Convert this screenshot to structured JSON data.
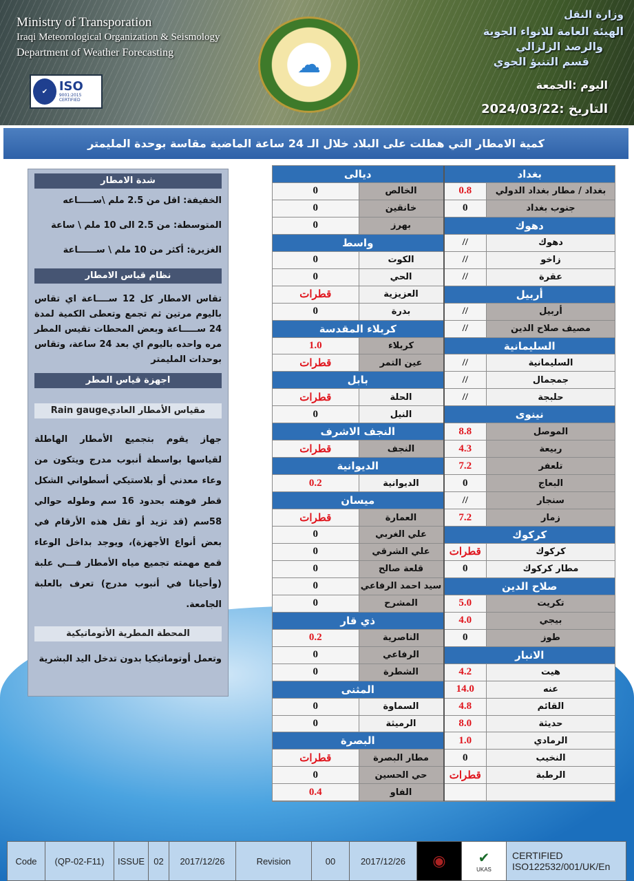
{
  "header": {
    "en": [
      "Ministry of Transporation",
      "Iraqi Meteorological Organization & Seismology",
      "Department of Weather Forecasting"
    ],
    "iso": {
      "label": "ISO",
      "sub": "9001:2015 CERTIFIED"
    },
    "ar": [
      "وزارة النقل",
      "الهيئة العامة للانواء الجوية",
      "والرصد الزلزالي",
      "قسم التنبؤ الجوي"
    ],
    "day": "اليوم :الجمعة",
    "date": "التاريخ :2024/03/22"
  },
  "title": "كمية الامطار التي هطلت على البلاد خلال الـ 24 ساعة الماضية مقاسة بوحدة المليمتر",
  "left_panel": {
    "intensity_title": "شدة الامطار",
    "intensity": [
      "الخفيفة: اقل من  2.5  ملم \\ســـــاعه",
      "المتوسطة: من 2.5 الى 10 ملم \\ ساعة",
      "الغزيرة: أكثر من 10 ملم \\ ســــــاعة"
    ],
    "system_title": "نظام قياس الامطار",
    "system_text": "تقاس الامطار كل 12 ســــاعة اي تقاس باليوم مرتين ثم تجمع وتعطى الكمية لمدة 24 ســـــاعة وبعض المحطات تقيس المطر مره واحده باليوم اي بعد 24 ساعة، وتقاس بوحدات المليمتر",
    "devices_title": "اجهزة قياس المطر",
    "gauge_title": "مقياس الأمطار العاديRain gauge",
    "gauge_text": "جهاز يقوم بتجميع الأمطار الهاطلة لقياسها بواسطة أنبوب مدرج ويتكون من وعاء معدني أو بلاستيكي أسطواني الشكل قطر فوهته بحدود 16 سم وطوله حوالي 58سم (قد تزيد أو تقل هذه الأرقام في بعض أنواع الأجهزة)، ويوجد بداخل الوعاء قمع مهمته تجميع مياه الأمطار فـــي علبة (وأحيانا في أنبوب مدرج) تعرف بالعلبة الجامعة.",
    "auto_title": "المحطة المطرية الأتوماتيكية",
    "auto_text": "وتعمل أوتوماتيكيا بدون تدخل اليد البشرية"
  },
  "table_left": [
    {
      "h": "ديالى"
    },
    {
      "n": "الخالص",
      "v": "0",
      "g": 1
    },
    {
      "n": "خانقين",
      "v": "0",
      "g": 1
    },
    {
      "n": "بهرز",
      "v": "0",
      "g": 1
    },
    {
      "h": "واسط"
    },
    {
      "n": "الكوت",
      "v": "0"
    },
    {
      "n": "الحي",
      "v": "0"
    },
    {
      "n": "العزيزية",
      "v": "قطرات"
    },
    {
      "n": "بدرة",
      "v": "0"
    },
    {
      "h": "كربلاء المقدسة"
    },
    {
      "n": "كربلاء",
      "v": "1.0",
      "g": 1
    },
    {
      "n": "عين التمر",
      "v": "قطرات",
      "g": 1
    },
    {
      "h": "بابل"
    },
    {
      "n": "الحلة",
      "v": "قطرات"
    },
    {
      "n": "النيل",
      "v": "0"
    },
    {
      "h": "النجف الاشرف"
    },
    {
      "n": "النجف",
      "v": "قطرات",
      "g": 1
    },
    {
      "h": "الديوانية"
    },
    {
      "n": "الديوانية",
      "v": "0.2"
    },
    {
      "h": "ميسان"
    },
    {
      "n": "العمارة",
      "v": "قطرات",
      "g": 1
    },
    {
      "n": "علي الغربي",
      "v": "0",
      "g": 1
    },
    {
      "n": "علي الشرقي",
      "v": "0",
      "g": 1
    },
    {
      "n": "قلعة صالح",
      "v": "0",
      "g": 1
    },
    {
      "n": "سيد احمد الرفاعي",
      "v": "0",
      "g": 1
    },
    {
      "n": "المشرح",
      "v": "0",
      "g": 1
    },
    {
      "h": "ذي قار"
    },
    {
      "n": "الناصرية",
      "v": "0.2",
      "g": 1
    },
    {
      "n": "الرفاعي",
      "v": "0",
      "g": 1
    },
    {
      "n": "الشطرة",
      "v": "0",
      "g": 1
    },
    {
      "h": "المثنى"
    },
    {
      "n": "السماوة",
      "v": "0"
    },
    {
      "n": "الرميثة",
      "v": "0"
    },
    {
      "h": "البصرة"
    },
    {
      "n": "مطار البصرة",
      "v": "قطرات",
      "g": 1
    },
    {
      "n": "حي الحسين",
      "v": "0",
      "g": 1
    },
    {
      "n": "الفاو",
      "v": "0.4",
      "g": 1
    }
  ],
  "table_right": [
    {
      "h": "بغداد"
    },
    {
      "n": "بغداد / مطار بغداد الدولي",
      "v": "0.8",
      "g": 1
    },
    {
      "n": "جنوب بغداد",
      "v": "0",
      "g": 1
    },
    {
      "h": "دهوك"
    },
    {
      "n": "دهوك",
      "v": "//"
    },
    {
      "n": "زاخو",
      "v": "//"
    },
    {
      "n": "عقرة",
      "v": "//"
    },
    {
      "h": "أربيل"
    },
    {
      "n": "أربيل",
      "v": "//",
      "g": 1
    },
    {
      "n": "مصيف صلاح الدين",
      "v": "//",
      "g": 1
    },
    {
      "h": "السليمانية"
    },
    {
      "n": "السليمانية",
      "v": "//"
    },
    {
      "n": "جمجمال",
      "v": "//"
    },
    {
      "n": "حلبجة",
      "v": "//"
    },
    {
      "h": "نينوى"
    },
    {
      "n": "الموصل",
      "v": "8.8",
      "g": 1
    },
    {
      "n": "ربيعة",
      "v": "4.3",
      "g": 1
    },
    {
      "n": "تلعفر",
      "v": "7.2",
      "g": 1
    },
    {
      "n": "البعاج",
      "v": "0",
      "g": 1
    },
    {
      "n": "سنجار",
      "v": "//",
      "g": 1
    },
    {
      "n": "زمار",
      "v": "7.2",
      "g": 1
    },
    {
      "h": "كركوك"
    },
    {
      "n": "كركوك",
      "v": "قطرات"
    },
    {
      "n": "مطار كركوك",
      "v": "0"
    },
    {
      "h": "صلاح الدين"
    },
    {
      "n": "تكريت",
      "v": "5.0",
      "g": 1
    },
    {
      "n": "بيجي",
      "v": "4.0",
      "g": 1
    },
    {
      "n": "طوز",
      "v": "0",
      "g": 1
    },
    {
      "h": "الانبار"
    },
    {
      "n": "هيت",
      "v": "4.2"
    },
    {
      "n": "عنه",
      "v": "14.0"
    },
    {
      "n": "القائم",
      "v": "4.8"
    },
    {
      "n": "حديثة",
      "v": "8.0"
    },
    {
      "n": "الرمادي",
      "v": "1.0"
    },
    {
      "n": "النخيب",
      "v": "0"
    },
    {
      "n": "الرطبة",
      "v": "قطرات"
    },
    {
      "n": "",
      "v": ""
    }
  ],
  "footer": {
    "cells": [
      "Code",
      "(QP-02-F11)",
      "ISSUE",
      "02",
      "2017/12/26",
      "Revision",
      "00",
      "2017/12/26"
    ],
    "ukas": "UKAS",
    "cert": [
      "CERTIFIED",
      "ISO122532/001/UK/En"
    ]
  },
  "colors": {
    "header_blue": "#2e6fb6",
    "rain_red": "#e0141c",
    "panel": "#b3bfd3"
  }
}
